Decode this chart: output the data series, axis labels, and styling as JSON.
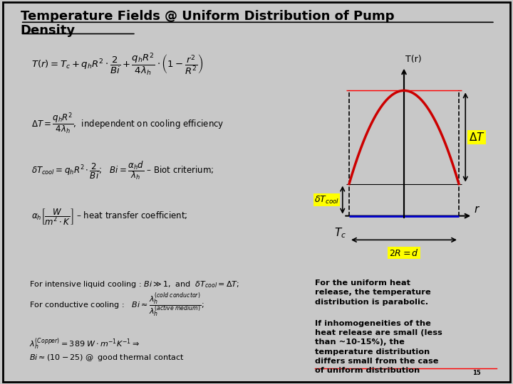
{
  "title_line1": "Temperature Fields @ Uniform Distribution of Pump",
  "title_line2": "Density",
  "bg_color": "#c8c8c8",
  "left_box_color": "#a0aab4",
  "plot_bg": "#ffffff",
  "parabola_color": "#cc0000",
  "baseline_color": "#0000cc",
  "highlight_yellow": "#ffff00",
  "T_max": 0.5,
  "delta_T": 0.35,
  "delta_T_cool": 0.12,
  "T_c": 0.0,
  "R": 0.5,
  "text_box1_line1": "For the uniform heat",
  "text_box1_line2": "release, the temperature",
  "text_box1_line3": "distribution is parabolic.",
  "text_box2_line1": "If inhomogeneities of the",
  "text_box2_line2": "heat release are small (less",
  "text_box2_line3": "than ~10-15%), the",
  "text_box2_line4": "temperature distribution",
  "text_box2_line5": "differs small from the case",
  "text_box2_line6": "of uniform distribution",
  "superscript": "15"
}
